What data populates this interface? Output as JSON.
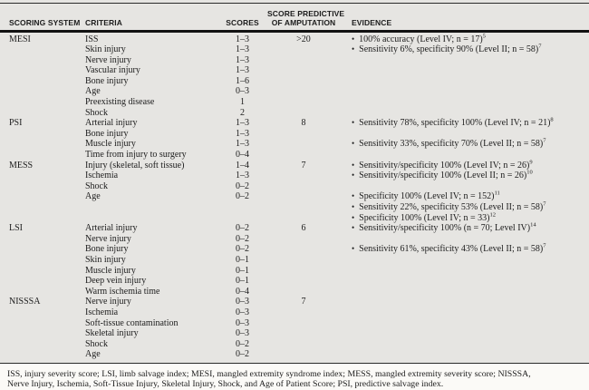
{
  "table": {
    "bullet_icon": "•",
    "headers": {
      "scoring_system": "SCORING SYSTEM",
      "criteria": "CRITERIA",
      "scores": "SCORES",
      "predictive_line1": "SCORE PREDICTIVE",
      "predictive_line2": "OF AMPUTATION",
      "evidence": "EVIDENCE"
    },
    "sections": [
      {
        "name": "MESI",
        "predictive": ">20",
        "rows": [
          {
            "criteria": "ISS",
            "score": "1–3",
            "evidence": "100% accuracy (Level IV; n = 17)",
            "evidence_sup": "5"
          },
          {
            "criteria": "Skin injury",
            "score": "1–3",
            "evidence": "Sensitivity 6%, specificity 90% (Level II; n = 58)",
            "evidence_sup": "7"
          },
          {
            "criteria": "Nerve injury",
            "score": "1–3"
          },
          {
            "criteria": "Vascular injury",
            "score": "1–3"
          },
          {
            "criteria": "Bone injury",
            "score": "1–6"
          },
          {
            "criteria": "Age",
            "score": "0–3"
          },
          {
            "criteria": "Preexisting disease",
            "score": "1"
          },
          {
            "criteria": "Shock",
            "score": "2"
          }
        ]
      },
      {
        "name": "PSI",
        "predictive": "8",
        "rows": [
          {
            "criteria": "Arterial injury",
            "score": "1–3",
            "evidence": "Sensitivity 78%, specificity 100% (Level IV; n = 21)",
            "evidence_sup": "8"
          },
          {
            "criteria": "Bone injury",
            "score": "1–3"
          },
          {
            "criteria": "Muscle injury",
            "score": "1–3",
            "evidence": "Sensitivity 33%, specificity 70% (Level II; n = 58)",
            "evidence_sup": "7"
          },
          {
            "criteria": "Time from injury to surgery",
            "score": "0–4"
          }
        ]
      },
      {
        "name": "MESS",
        "predictive": "7",
        "rows": [
          {
            "criteria": "Injury (skeletal, soft tissue)",
            "score": "1–4",
            "evidence": "Sensitivity/specificity 100% (Level IV; n = 26)",
            "evidence_sup": "9"
          },
          {
            "criteria": "Ischemia",
            "score": "1–3",
            "evidence": "Sensitivity/specificity 100% (Level II; n = 26)",
            "evidence_sup": "10"
          },
          {
            "criteria": "Shock",
            "score": "0–2"
          },
          {
            "criteria": "Age",
            "score": "0–2",
            "evidence": "Specificity 100% (Level IV; n = 152)",
            "evidence_sup": "11"
          },
          {
            "criteria": "",
            "score": "",
            "evidence": "Sensitivity 22%, specificity 53% (Level II; n = 58)",
            "evidence_sup": "7"
          },
          {
            "criteria": "",
            "score": "",
            "evidence": "Specificity 100% (Level IV; n = 33)",
            "evidence_sup": "12"
          }
        ]
      },
      {
        "name": "LSI",
        "predictive": "6",
        "rows": [
          {
            "criteria": "Arterial injury",
            "score": "0–2",
            "evidence": "Sensitivity/specificity 100% (n = 70; Level IV)",
            "evidence_sup": "14"
          },
          {
            "criteria": "Nerve injury",
            "score": "0–2"
          },
          {
            "criteria": "Bone injury",
            "score": "0–2",
            "evidence": "Sensitivity 61%, specificity 43% (Level II; n = 58)",
            "evidence_sup": "7"
          },
          {
            "criteria": "Skin injury",
            "score": "0–1"
          },
          {
            "criteria": "Muscle injury",
            "score": "0–1"
          },
          {
            "criteria": "Deep vein injury",
            "score": "0–1"
          },
          {
            "criteria": "Warm ischemia time",
            "score": "0–4"
          }
        ]
      },
      {
        "name": "NISSSA",
        "predictive": "7",
        "rows": [
          {
            "criteria": "Nerve injury",
            "score": "0–3"
          },
          {
            "criteria": "Ischemia",
            "score": "0–3"
          },
          {
            "criteria": "Soft-tissue contamination",
            "score": "0–3"
          },
          {
            "criteria": "Skeletal injury",
            "score": "0–3"
          },
          {
            "criteria": "Shock",
            "score": "0–2"
          },
          {
            "criteria": "Age",
            "score": "0–2"
          }
        ]
      }
    ],
    "footnote_line1": "ISS, injury severity score; LSI, limb salvage index; MESI, mangled extremity syndrome index; MESS, mangled extremity severity score; NISSSA,",
    "footnote_line2": "Nerve Injury, Ischemia, Soft-Tissue Injury, Skeletal Injury, Shock, and Age of Patient Score; PSI, predictive salvage index."
  },
  "colors": {
    "table_background": "#e6e5e2",
    "page_background": "#fbfaf7",
    "text": "#1c1c1c",
    "rule": "#121212"
  }
}
